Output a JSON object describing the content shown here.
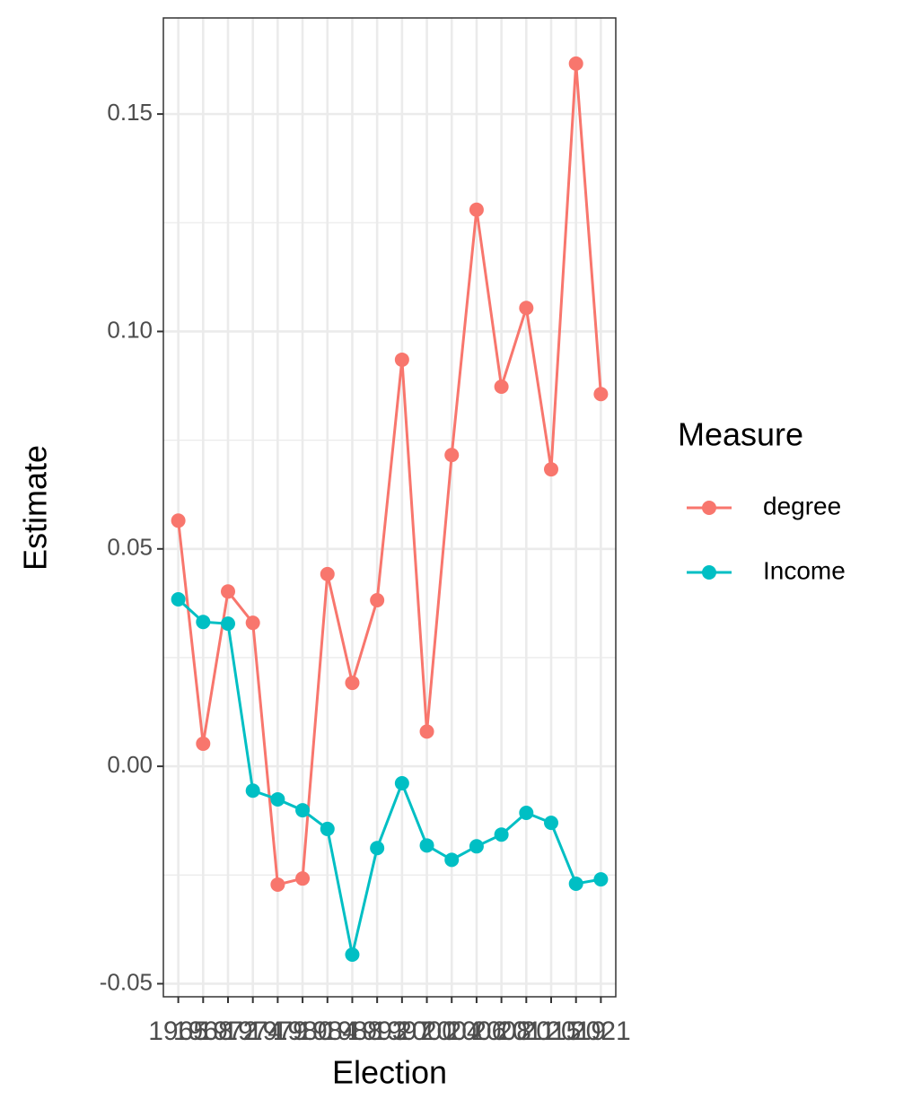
{
  "chart_data": {
    "type": "line",
    "x_label": "Election",
    "y_label": "Estimate",
    "legend_title": "Measure",
    "categories": [
      "1965",
      "1968",
      "1972",
      "1974",
      "1979",
      "1980",
      "1984",
      "1988",
      "1993",
      "1997",
      "2000",
      "2004",
      "2006",
      "2008",
      "2011",
      "2015",
      "2019",
      "2021"
    ],
    "series": [
      {
        "name": "degree",
        "color": "#F8766D",
        "values": [
          0.0565,
          0.0052,
          0.0402,
          0.033,
          -0.0272,
          -0.0258,
          0.0442,
          0.0192,
          0.0382,
          0.0935,
          0.008,
          0.0716,
          0.128,
          0.0873,
          0.1054,
          0.0683,
          0.1616,
          0.0856
        ]
      },
      {
        "name": "Income",
        "color": "#00BFC4",
        "values": [
          0.0384,
          0.0332,
          0.0328,
          -0.0056,
          -0.0076,
          -0.0101,
          -0.0144,
          -0.0433,
          -0.0188,
          -0.0039,
          -0.0182,
          -0.0215,
          -0.0184,
          -0.0157,
          -0.0107,
          -0.013,
          -0.027,
          -0.026
        ]
      }
    ],
    "ylim": [
      -0.053,
      0.1721
    ],
    "yticks": [
      -0.05,
      {
        "value": 0,
        "label": "0.00"
      },
      0.05,
      {
        "value": 0.1,
        "label": "0.10"
      },
      0.15
    ],
    "grid": true,
    "legend": "right"
  }
}
